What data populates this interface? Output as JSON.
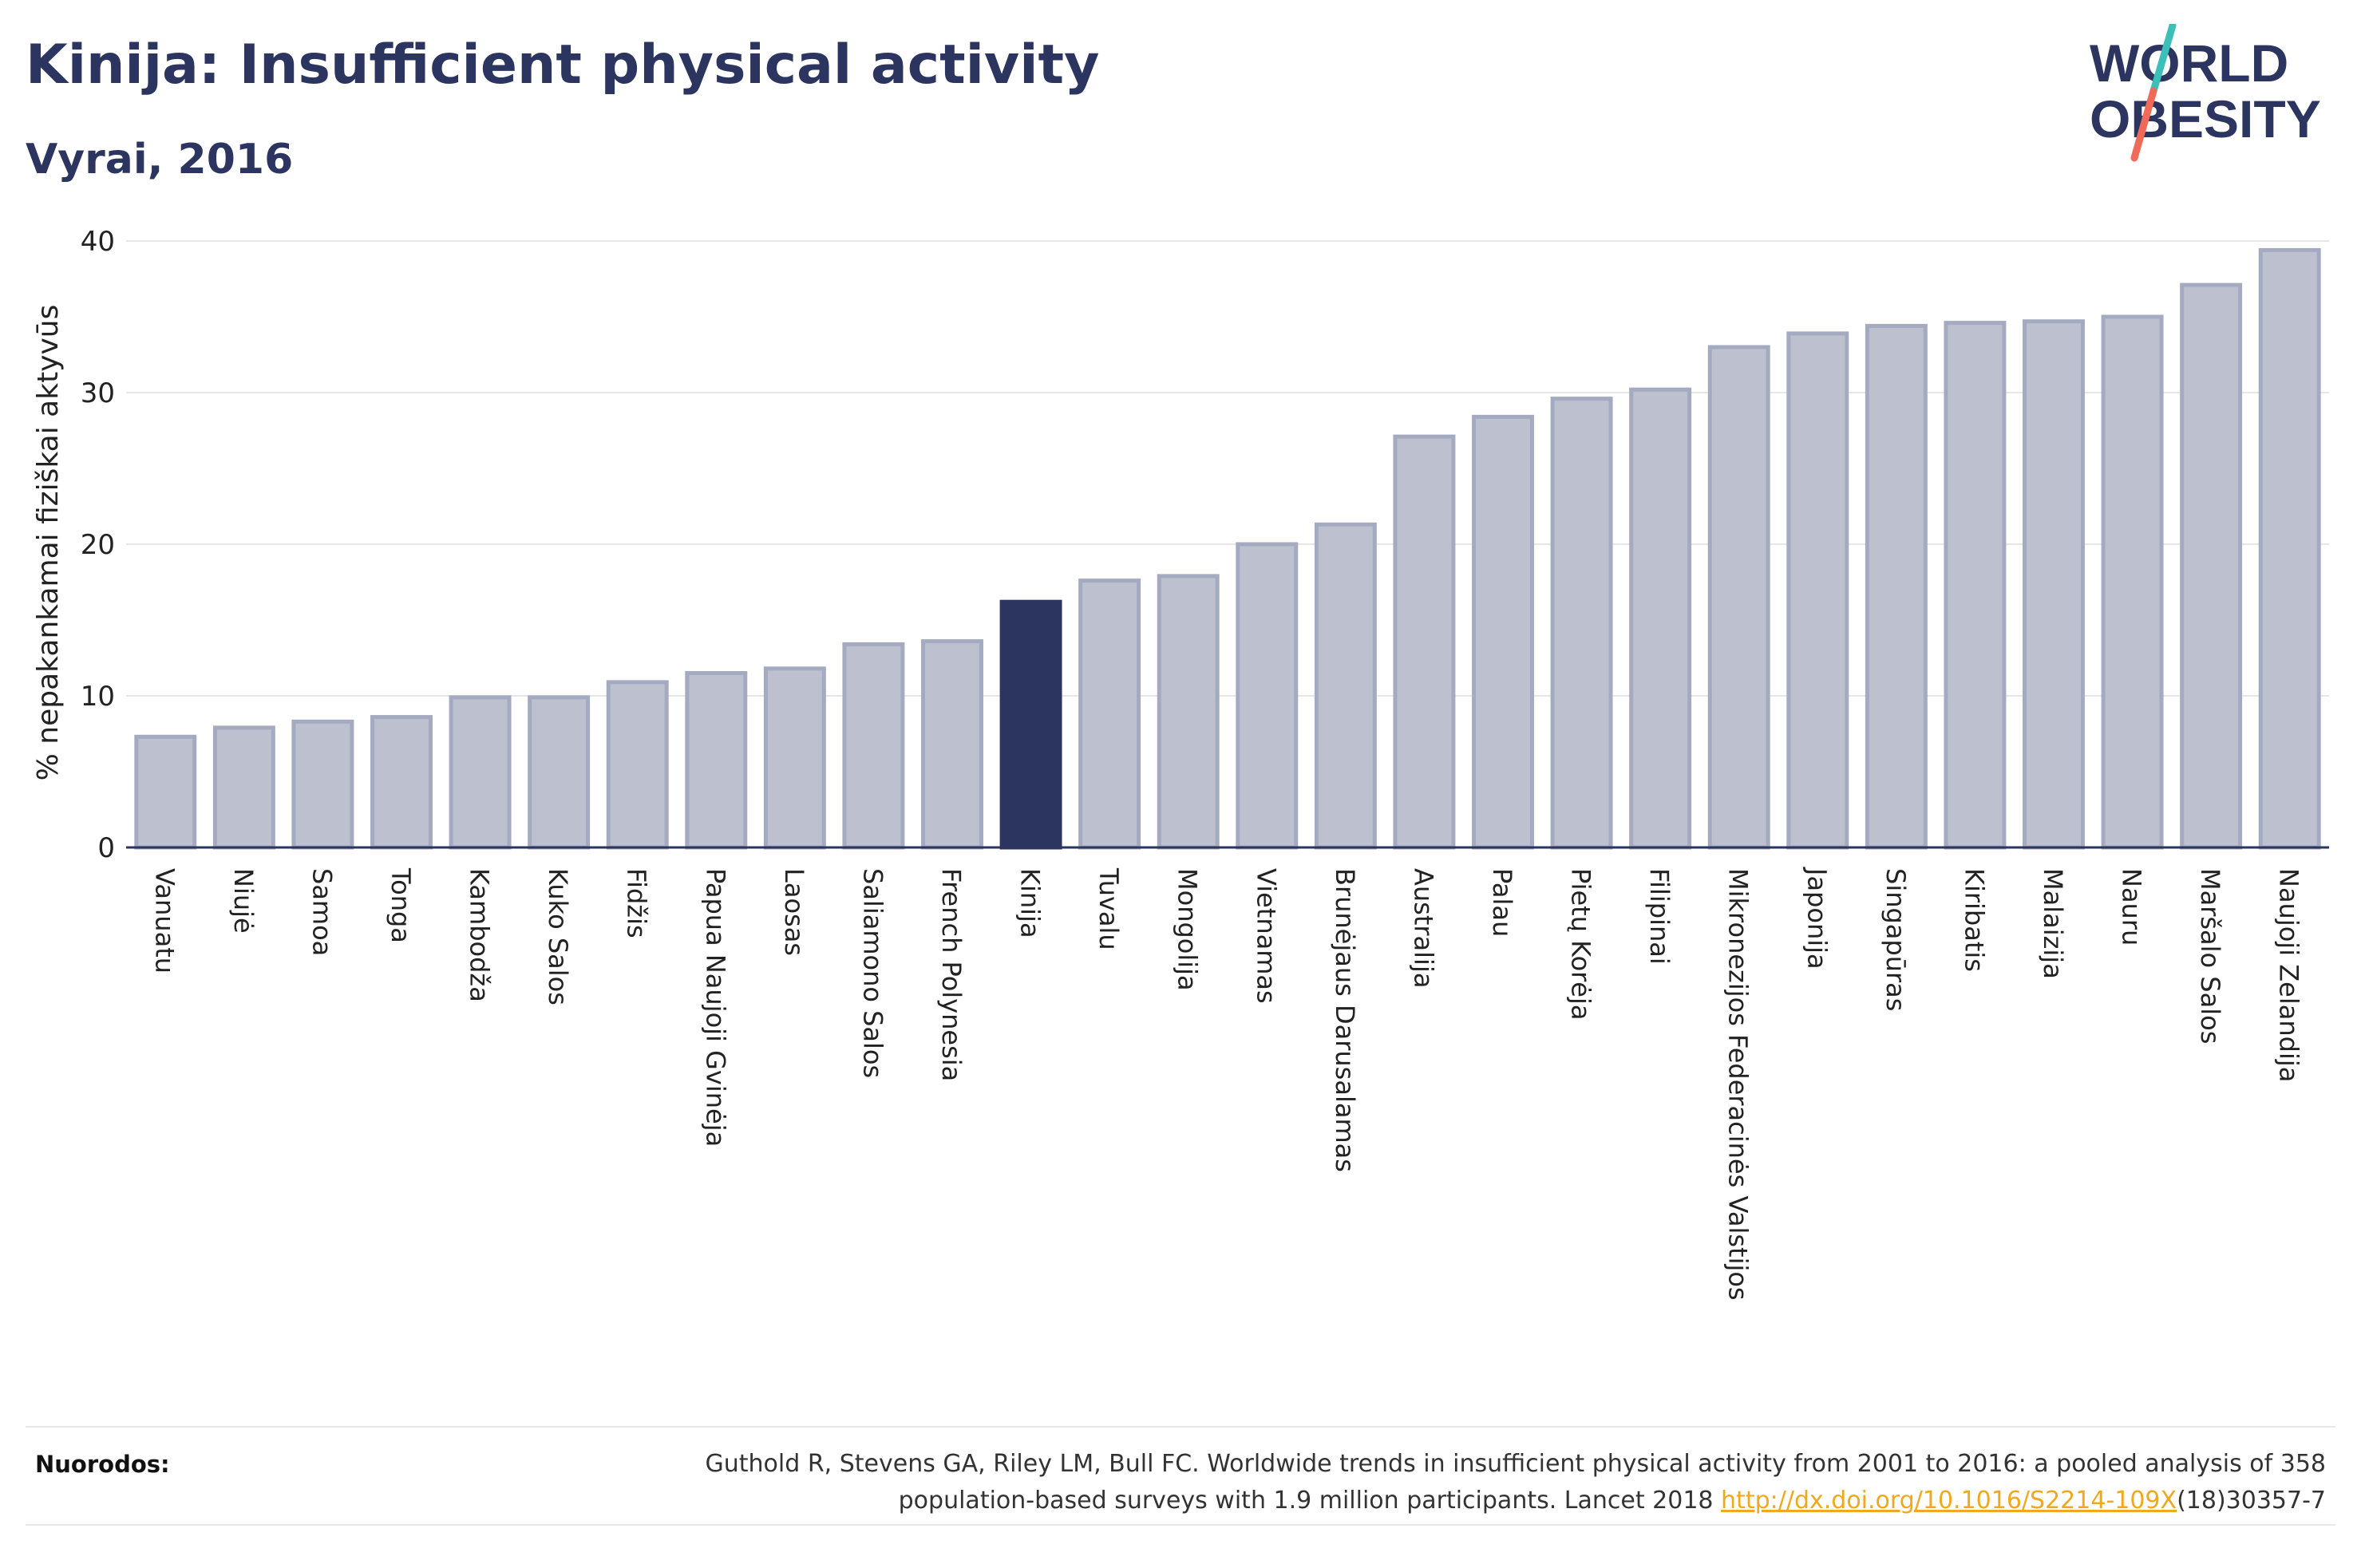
{
  "header": {
    "title": "Kinija: Insufficient physical activity",
    "subtitle": "Vyrai, 2016"
  },
  "logo": {
    "line1": "WORLD",
    "line2": "OBESITY",
    "colors": {
      "text": "#2b3560",
      "slash_top": "#3bbfb8",
      "slash_bottom": "#f06a5a"
    }
  },
  "chart_data": {
    "type": "bar",
    "ylabel": "% nepakankamai fiziškai aktyvūs",
    "xlabel": "",
    "ylim": [
      0,
      40
    ],
    "yticks": [
      0,
      10,
      20,
      30,
      40
    ],
    "grid": true,
    "highlight": "Kinija",
    "colors": {
      "bar": "#bcc0cf",
      "bar_edge": "#a4aac0",
      "highlight": "#2b3560"
    },
    "categories": [
      "Vanuatu",
      "Niujė",
      "Samoa",
      "Tonga",
      "Kambodža",
      "Kuko Salos",
      "Fidžis",
      "Papua Naujoji Gvinėja",
      "Laosas",
      "Saliamono Salos",
      "French Polynesia",
      "Kinija",
      "Tuvalu",
      "Mongolija",
      "Vietnamas",
      "Brunėjaus Darusalamas",
      "Australija",
      "Palau",
      "Pietų Korėja",
      "Filipinai",
      "Mikronezijos Federacinės Valstijos",
      "Japonija",
      "Singapūras",
      "Kiribatis",
      "Malaizija",
      "Nauru",
      "Maršalo Salos",
      "Naujoji Zelandija"
    ],
    "values": [
      7.3,
      7.9,
      8.3,
      8.6,
      9.9,
      9.9,
      10.9,
      11.5,
      11.8,
      13.4,
      13.6,
      16.2,
      17.6,
      17.9,
      20.0,
      21.3,
      27.1,
      28.4,
      29.6,
      30.2,
      33.0,
      33.9,
      34.4,
      34.6,
      34.7,
      35.0,
      37.1,
      39.4
    ]
  },
  "footer": {
    "label": "Nuorodos:",
    "text_line1": "Guthold R, Stevens GA, Riley LM, Bull FC. Worldwide trends in insufficient physical activity from 2001 to 2016: a pooled analysis of 358",
    "text_line2_pre": "population-based surveys with 1.9 million participants. Lancet 2018 ",
    "link": "http://dx.doi.org/10.1016/S2214-109X",
    "text_line2_post": "(18)30357-7"
  }
}
